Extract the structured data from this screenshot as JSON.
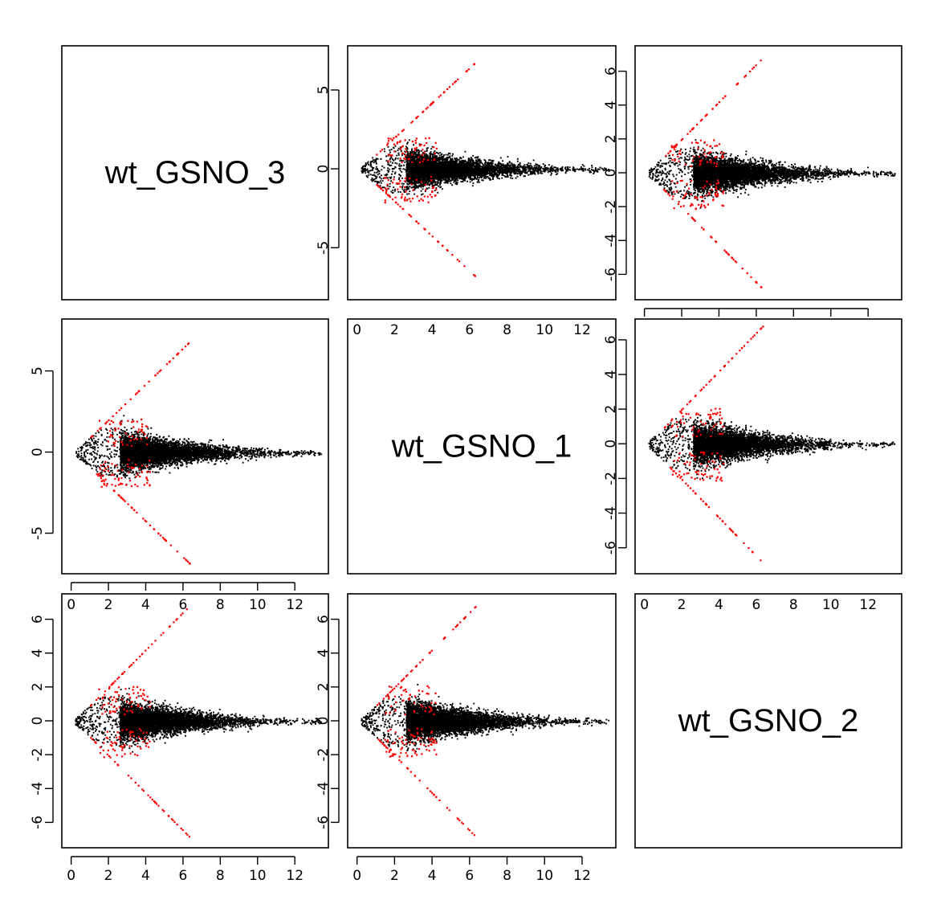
{
  "chart_data": {
    "type": "scatter",
    "title": "",
    "description_kind": "pairwise MA-plot matrix",
    "samples": [
      "wt_GSNO_3",
      "wt_GSNO_1",
      "wt_GSNO_2"
    ],
    "colors": {
      "points": "#000000",
      "highlight": "#ff0000",
      "frame": "#000000",
      "background": "#ffffff"
    },
    "panels": [
      {
        "row": 0,
        "col": 1,
        "xlim": [
          -0.5,
          13.8
        ],
        "ylim": [
          -8.3,
          7.8
        ],
        "yticks": [
          -5,
          0,
          5
        ],
        "yaxis": "left",
        "xaxis": "none",
        "seed": 11
      },
      {
        "row": 0,
        "col": 2,
        "xlim": [
          -0.5,
          13.8
        ],
        "ylim": [
          -7.5,
          7.5
        ],
        "yticks": [
          -6,
          -4,
          -2,
          0,
          2,
          4,
          6
        ],
        "yaxis": "left",
        "xaxis": "bottom",
        "seed": 23
      },
      {
        "row": 1,
        "col": 0,
        "xlim": [
          -0.5,
          13.8
        ],
        "ylim": [
          -7.5,
          8.2
        ],
        "yticks": [
          -5,
          0,
          5
        ],
        "yaxis": "left",
        "xaxis": "bottom",
        "seed": 37
      },
      {
        "row": 1,
        "col": 2,
        "xlim": [
          -0.5,
          13.8
        ],
        "ylim": [
          -7.5,
          7.2
        ],
        "yticks": [
          -6,
          -4,
          -2,
          0,
          2,
          4,
          6
        ],
        "yaxis": "left",
        "xaxis": "top",
        "seed": 41
      },
      {
        "row": 2,
        "col": 0,
        "xlim": [
          -0.5,
          13.8
        ],
        "ylim": [
          -7.5,
          7.5
        ],
        "yticks": [
          -6,
          -4,
          -2,
          0,
          2,
          4,
          6
        ],
        "yaxis": "left",
        "xaxis": "bottom",
        "seed": 53
      },
      {
        "row": 2,
        "col": 1,
        "xlim": [
          -0.5,
          13.8
        ],
        "ylim": [
          -7.5,
          7.5
        ],
        "yticks": [
          -6,
          -4,
          -2,
          0,
          2,
          4,
          6
        ],
        "yaxis": "left",
        "xaxis": "bottom",
        "seed": 67
      }
    ],
    "diagonal": [
      {
        "row": 0,
        "col": 0,
        "label": "wt_GSNO_3"
      },
      {
        "row": 1,
        "col": 1,
        "label": "wt_GSNO_1"
      },
      {
        "row": 2,
        "col": 2,
        "label": "wt_GSNO_2"
      }
    ],
    "top_xaxis_panels": [
      {
        "row": 1,
        "col": 1
      },
      {
        "row": 2,
        "col": 0
      },
      {
        "row": 2,
        "col": 2
      }
    ],
    "xticks": [
      0,
      2,
      4,
      6,
      8,
      10,
      12
    ]
  }
}
